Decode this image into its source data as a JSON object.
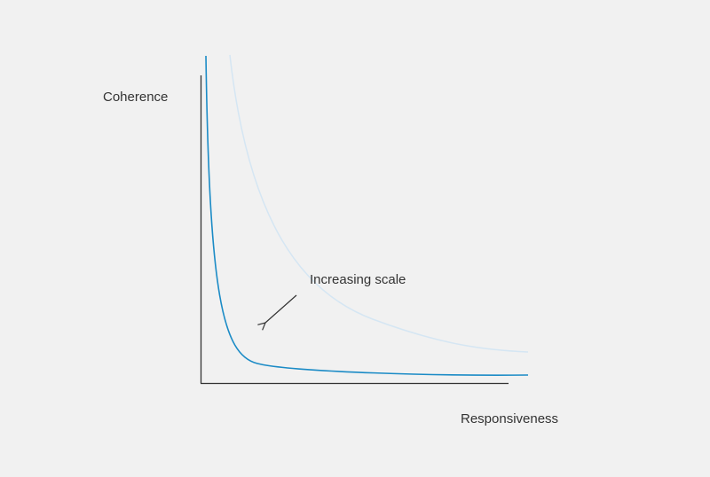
{
  "y_axis_label": "Coherence",
  "x_axis_label": "Responsiveness",
  "annotation": "Increasing scale"
}
